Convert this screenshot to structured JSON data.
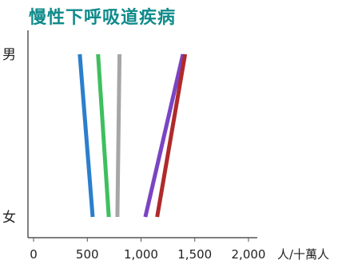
{
  "chart_data": {
    "type": "line",
    "title": "慢性下呼吸道疾病",
    "xlabel": "人/十萬人",
    "ylabel": "",
    "categories": [
      "男",
      "女"
    ],
    "xlim": [
      0,
      2100
    ],
    "xticks": [
      0,
      500,
      1000,
      1500,
      2000
    ],
    "xtick_labels": [
      "0",
      "500",
      "1,000",
      "1,500",
      "2,000"
    ],
    "grid": false,
    "series": [
      {
        "color": "#2b7fcc",
        "values": [
          430,
          550
        ]
      },
      {
        "color": "#3fbf5f",
        "values": [
          600,
          700
        ]
      },
      {
        "color": "#a6a6a6",
        "values": [
          800,
          780
        ]
      },
      {
        "color": "#7a44c4",
        "values": [
          1390,
          1040
        ]
      },
      {
        "color": "#b02a2a",
        "values": [
          1410,
          1150
        ]
      }
    ]
  }
}
